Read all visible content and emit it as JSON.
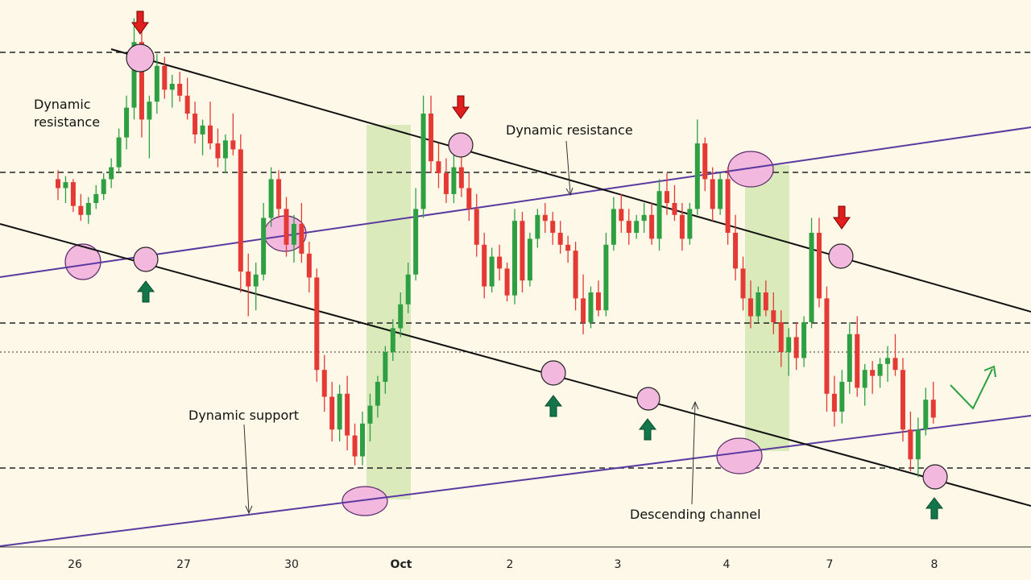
{
  "chart_data": {
    "type": "candlestick",
    "title": "",
    "xlabel": "",
    "ylabel": "",
    "grid": false,
    "x_ticks": [
      "26",
      "27",
      "30",
      "Oct",
      "2",
      "3",
      "4",
      "7",
      "8"
    ],
    "annotations": [
      {
        "id": "dyn-res-left-1",
        "text": "Dynamic"
      },
      {
        "id": "dyn-res-left-2",
        "text": "resistance"
      },
      {
        "id": "dyn-res-mid",
        "text": "Dynamic resistance"
      },
      {
        "id": "dyn-sup",
        "text": "Dynamic support"
      },
      {
        "id": "desc-channel",
        "text": "Descending channel"
      }
    ],
    "candles": [
      {
        "o": 58,
        "h": 61,
        "l": 51,
        "c": 55
      },
      {
        "o": 55,
        "h": 59,
        "l": 50,
        "c": 57
      },
      {
        "o": 57,
        "h": 58,
        "l": 47,
        "c": 49
      },
      {
        "o": 49,
        "h": 53,
        "l": 44,
        "c": 46
      },
      {
        "o": 46,
        "h": 52,
        "l": 43,
        "c": 50
      },
      {
        "o": 50,
        "h": 56,
        "l": 48,
        "c": 53
      },
      {
        "o": 53,
        "h": 60,
        "l": 51,
        "c": 58
      },
      {
        "o": 58,
        "h": 65,
        "l": 55,
        "c": 62
      },
      {
        "o": 62,
        "h": 75,
        "l": 60,
        "c": 72
      },
      {
        "o": 72,
        "h": 86,
        "l": 68,
        "c": 82
      },
      {
        "o": 82,
        "h": 112,
        "l": 78,
        "c": 104
      },
      {
        "o": 104,
        "h": 111,
        "l": 72,
        "c": 78
      },
      {
        "o": 78,
        "h": 86,
        "l": 65,
        "c": 84
      },
      {
        "o": 84,
        "h": 100,
        "l": 80,
        "c": 96
      },
      {
        "o": 96,
        "h": 99,
        "l": 85,
        "c": 88
      },
      {
        "o": 88,
        "h": 93,
        "l": 82,
        "c": 90
      },
      {
        "o": 90,
        "h": 94,
        "l": 84,
        "c": 86
      },
      {
        "o": 86,
        "h": 92,
        "l": 78,
        "c": 80
      },
      {
        "o": 80,
        "h": 84,
        "l": 70,
        "c": 73
      },
      {
        "o": 73,
        "h": 78,
        "l": 66,
        "c": 76
      },
      {
        "o": 76,
        "h": 84,
        "l": 68,
        "c": 70
      },
      {
        "o": 70,
        "h": 75,
        "l": 62,
        "c": 65
      },
      {
        "o": 65,
        "h": 73,
        "l": 60,
        "c": 71
      },
      {
        "o": 71,
        "h": 80,
        "l": 66,
        "c": 68
      },
      {
        "o": 68,
        "h": 73,
        "l": 20,
        "c": 27
      },
      {
        "o": 27,
        "h": 33,
        "l": 12,
        "c": 22
      },
      {
        "o": 22,
        "h": 30,
        "l": 14,
        "c": 26
      },
      {
        "o": 26,
        "h": 50,
        "l": 24,
        "c": 45
      },
      {
        "o": 45,
        "h": 62,
        "l": 42,
        "c": 58
      },
      {
        "o": 58,
        "h": 61,
        "l": 45,
        "c": 48
      },
      {
        "o": 48,
        "h": 52,
        "l": 32,
        "c": 36
      },
      {
        "o": 36,
        "h": 46,
        "l": 30,
        "c": 43
      },
      {
        "o": 43,
        "h": 50,
        "l": 30,
        "c": 33
      },
      {
        "o": 33,
        "h": 37,
        "l": 20,
        "c": 25
      },
      {
        "o": 25,
        "h": 28,
        "l": -10,
        "c": -6
      },
      {
        "o": -6,
        "h": -1,
        "l": -20,
        "c": -15
      },
      {
        "o": -15,
        "h": -10,
        "l": -30,
        "c": -26
      },
      {
        "o": -26,
        "h": -11,
        "l": -30,
        "c": -14
      },
      {
        "o": -14,
        "h": -8,
        "l": -33,
        "c": -28
      },
      {
        "o": -28,
        "h": -24,
        "l": -38,
        "c": -35
      },
      {
        "o": -35,
        "h": -20,
        "l": -38,
        "c": -24
      },
      {
        "o": -24,
        "h": -14,
        "l": -30,
        "c": -18
      },
      {
        "o": -18,
        "h": -8,
        "l": -22,
        "c": -10
      },
      {
        "o": -10,
        "h": 2,
        "l": -14,
        "c": 0
      },
      {
        "o": 0,
        "h": 11,
        "l": -3,
        "c": 8
      },
      {
        "o": 8,
        "h": 20,
        "l": 5,
        "c": 16
      },
      {
        "o": 16,
        "h": 30,
        "l": 13,
        "c": 26
      },
      {
        "o": 26,
        "h": 55,
        "l": 24,
        "c": 48
      },
      {
        "o": 48,
        "h": 86,
        "l": 45,
        "c": 80
      },
      {
        "o": 80,
        "h": 86,
        "l": 60,
        "c": 64
      },
      {
        "o": 64,
        "h": 70,
        "l": 55,
        "c": 60
      },
      {
        "o": 60,
        "h": 65,
        "l": 50,
        "c": 53
      },
      {
        "o": 53,
        "h": 66,
        "l": 50,
        "c": 62
      },
      {
        "o": 62,
        "h": 66,
        "l": 52,
        "c": 55
      },
      {
        "o": 55,
        "h": 60,
        "l": 44,
        "c": 48
      },
      {
        "o": 48,
        "h": 53,
        "l": 32,
        "c": 36
      },
      {
        "o": 36,
        "h": 40,
        "l": 18,
        "c": 22
      },
      {
        "o": 22,
        "h": 35,
        "l": 20,
        "c": 32
      },
      {
        "o": 32,
        "h": 36,
        "l": 24,
        "c": 28
      },
      {
        "o": 28,
        "h": 30,
        "l": 17,
        "c": 19
      },
      {
        "o": 19,
        "h": 48,
        "l": 16,
        "c": 44
      },
      {
        "o": 44,
        "h": 47,
        "l": 20,
        "c": 24
      },
      {
        "o": 24,
        "h": 40,
        "l": 22,
        "c": 38
      },
      {
        "o": 38,
        "h": 48,
        "l": 35,
        "c": 46
      },
      {
        "o": 46,
        "h": 50,
        "l": 40,
        "c": 44
      },
      {
        "o": 44,
        "h": 47,
        "l": 36,
        "c": 40
      },
      {
        "o": 40,
        "h": 44,
        "l": 33,
        "c": 36
      },
      {
        "o": 36,
        "h": 39,
        "l": 30,
        "c": 34
      },
      {
        "o": 34,
        "h": 37,
        "l": 14,
        "c": 18
      },
      {
        "o": 18,
        "h": 26,
        "l": 6,
        "c": 10
      },
      {
        "o": 10,
        "h": 22,
        "l": 8,
        "c": 20
      },
      {
        "o": 20,
        "h": 24,
        "l": 12,
        "c": 14
      },
      {
        "o": 14,
        "h": 40,
        "l": 12,
        "c": 36
      },
      {
        "o": 36,
        "h": 52,
        "l": 34,
        "c": 48
      },
      {
        "o": 48,
        "h": 53,
        "l": 40,
        "c": 44
      },
      {
        "o": 44,
        "h": 48,
        "l": 36,
        "c": 40
      },
      {
        "o": 40,
        "h": 46,
        "l": 38,
        "c": 44
      },
      {
        "o": 44,
        "h": 50,
        "l": 40,
        "c": 46
      },
      {
        "o": 46,
        "h": 50,
        "l": 36,
        "c": 38
      },
      {
        "o": 38,
        "h": 58,
        "l": 34,
        "c": 54
      },
      {
        "o": 54,
        "h": 60,
        "l": 46,
        "c": 50
      },
      {
        "o": 50,
        "h": 56,
        "l": 44,
        "c": 46
      },
      {
        "o": 46,
        "h": 50,
        "l": 34,
        "c": 38
      },
      {
        "o": 38,
        "h": 50,
        "l": 36,
        "c": 48
      },
      {
        "o": 48,
        "h": 78,
        "l": 46,
        "c": 70
      },
      {
        "o": 70,
        "h": 72,
        "l": 54,
        "c": 58
      },
      {
        "o": 58,
        "h": 62,
        "l": 44,
        "c": 48
      },
      {
        "o": 48,
        "h": 60,
        "l": 46,
        "c": 58
      },
      {
        "o": 58,
        "h": 62,
        "l": 36,
        "c": 40
      },
      {
        "o": 40,
        "h": 46,
        "l": 24,
        "c": 28
      },
      {
        "o": 28,
        "h": 32,
        "l": 14,
        "c": 18
      },
      {
        "o": 18,
        "h": 24,
        "l": 8,
        "c": 12
      },
      {
        "o": 12,
        "h": 22,
        "l": 10,
        "c": 20
      },
      {
        "o": 20,
        "h": 24,
        "l": 12,
        "c": 14
      },
      {
        "o": 14,
        "h": 20,
        "l": 6,
        "c": 10
      },
      {
        "o": 10,
        "h": 14,
        "l": -5,
        "c": 0
      },
      {
        "o": 0,
        "h": 8,
        "l": -8,
        "c": 5
      },
      {
        "o": 5,
        "h": 10,
        "l": -6,
        "c": -2
      },
      {
        "o": -2,
        "h": 12,
        "l": -5,
        "c": 10
      },
      {
        "o": 10,
        "h": 45,
        "l": 8,
        "c": 40
      },
      {
        "o": 40,
        "h": 45,
        "l": 15,
        "c": 18
      },
      {
        "o": 18,
        "h": 22,
        "l": -20,
        "c": -14
      },
      {
        "o": -14,
        "h": -8,
        "l": -25,
        "c": -20
      },
      {
        "o": -20,
        "h": -6,
        "l": -24,
        "c": -10
      },
      {
        "o": -10,
        "h": 10,
        "l": -14,
        "c": 6
      },
      {
        "o": 6,
        "h": 12,
        "l": -15,
        "c": -12
      },
      {
        "o": -12,
        "h": -4,
        "l": -18,
        "c": -6
      },
      {
        "o": -6,
        "h": -3,
        "l": -14,
        "c": -8
      },
      {
        "o": -8,
        "h": -2,
        "l": -12,
        "c": -4
      },
      {
        "o": -4,
        "h": 2,
        "l": -10,
        "c": -2
      },
      {
        "o": -2,
        "h": 6,
        "l": -8,
        "c": -6
      },
      {
        "o": -6,
        "h": -2,
        "l": -30,
        "c": -26
      },
      {
        "o": -26,
        "h": -20,
        "l": -40,
        "c": -36
      },
      {
        "o": -36,
        "h": -22,
        "l": -42,
        "c": -26
      },
      {
        "o": -26,
        "h": -12,
        "l": -28,
        "c": -16
      },
      {
        "o": -16,
        "h": -10,
        "l": -24,
        "c": -22
      }
    ]
  }
}
